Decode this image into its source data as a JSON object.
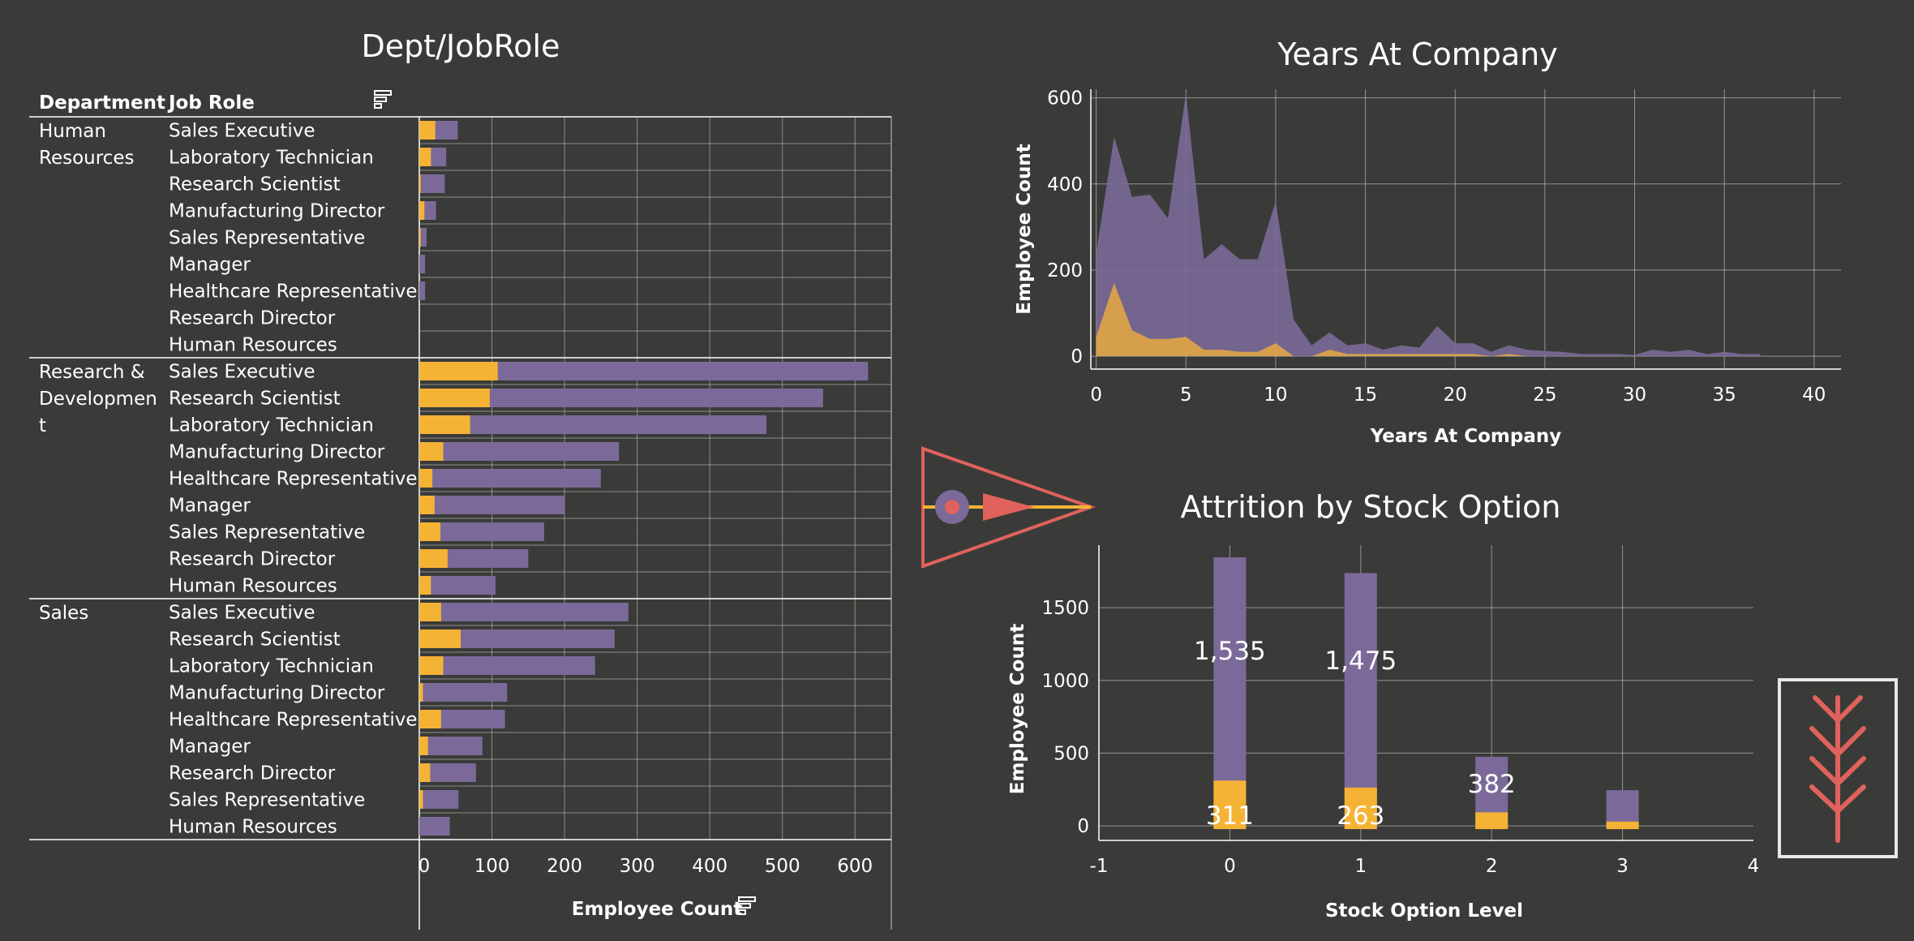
{
  "colors": {
    "background": "#3a3b38",
    "attrited": "#f5b335",
    "total": "#7b6a99",
    "grid": "#cfcfcf",
    "text": "#ffffff",
    "accent": "#e0625c"
  },
  "icons": [
    "sort-icon",
    "pennant-logo-icon",
    "tree-logo-icon"
  ],
  "dept_chart": {
    "title": "Dept/JobRole",
    "col_department": "Department",
    "col_job_role": "Job Role",
    "xlabel": "Employee Count"
  },
  "years_chart": {
    "title": "Years At Company"
  },
  "stock_chart": {
    "title": "Attrition by Stock Option"
  },
  "chart_data": [
    {
      "id": "dept-jobrole",
      "type": "bar",
      "orientation": "horizontal",
      "title": "Dept/JobRole",
      "xlabel": "Employee Count",
      "xlim": [
        0,
        650
      ],
      "xticks": [
        0,
        100,
        200,
        300,
        400,
        500,
        600
      ],
      "grid": true,
      "groups": [
        {
          "department": "Human Resources",
          "rows": [
            {
              "role": "Sales Executive",
              "total": 53,
              "attrited": 22
            },
            {
              "role": "Laboratory Technician",
              "total": 37,
              "attrited": 16
            },
            {
              "role": "Research Scientist",
              "total": 35,
              "attrited": 2
            },
            {
              "role": "Manufacturing Director",
              "total": 23,
              "attrited": 7
            },
            {
              "role": "Sales Representative",
              "total": 10,
              "attrited": 2
            },
            {
              "role": "Manager",
              "total": 8,
              "attrited": 0
            },
            {
              "role": "Healthcare Representative",
              "total": 8,
              "attrited": 0
            },
            {
              "role": "Research Director",
              "total": 0,
              "attrited": 0
            },
            {
              "role": "Human Resources",
              "total": 0,
              "attrited": 0
            }
          ]
        },
        {
          "department": "Research & Development",
          "rows": [
            {
              "role": "Sales Executive",
              "total": 618,
              "attrited": 108
            },
            {
              "role": "Research Scientist",
              "total": 556,
              "attrited": 97
            },
            {
              "role": "Laboratory Technician",
              "total": 478,
              "attrited": 70
            },
            {
              "role": "Manufacturing Director",
              "total": 275,
              "attrited": 33
            },
            {
              "role": "Healthcare Representative",
              "total": 250,
              "attrited": 18
            },
            {
              "role": "Manager",
              "total": 200,
              "attrited": 21
            },
            {
              "role": "Sales Representative",
              "total": 172,
              "attrited": 29
            },
            {
              "role": "Research Director",
              "total": 150,
              "attrited": 39
            },
            {
              "role": "Human Resources",
              "total": 105,
              "attrited": 16
            }
          ]
        },
        {
          "department": "Sales",
          "rows": [
            {
              "role": "Sales Executive",
              "total": 288,
              "attrited": 30
            },
            {
              "role": "Research Scientist",
              "total": 269,
              "attrited": 57
            },
            {
              "role": "Laboratory Technician",
              "total": 242,
              "attrited": 33
            },
            {
              "role": "Manufacturing Director",
              "total": 121,
              "attrited": 5
            },
            {
              "role": "Healthcare Representative",
              "total": 118,
              "attrited": 30
            },
            {
              "role": "Manager",
              "total": 87,
              "attrited": 12
            },
            {
              "role": "Research Director",
              "total": 78,
              "attrited": 15
            },
            {
              "role": "Sales Representative",
              "total": 54,
              "attrited": 5
            },
            {
              "role": "Human Resources",
              "total": 42,
              "attrited": 0
            }
          ]
        }
      ]
    },
    {
      "id": "years-at-company",
      "type": "area",
      "title": "Years At Company",
      "xlabel": "Years At Company",
      "ylabel": "Employee Count",
      "xlim": [
        -0.3,
        41.5
      ],
      "ylim": [
        -30,
        620
      ],
      "xticks": [
        0,
        5,
        10,
        15,
        20,
        25,
        30,
        35,
        40
      ],
      "yticks": [
        0,
        200,
        400,
        600
      ],
      "grid": true,
      "x": [
        0,
        1,
        2,
        3,
        4,
        5,
        6,
        7,
        8,
        9,
        10,
        11,
        12,
        13,
        14,
        15,
        16,
        17,
        18,
        19,
        20,
        21,
        22,
        23,
        24,
        25,
        26,
        27,
        28,
        29,
        30,
        31,
        32,
        33,
        34,
        35,
        36,
        37
      ],
      "series": [
        {
          "role": "total",
          "values": [
            240,
            510,
            370,
            375,
            320,
            610,
            225,
            260,
            225,
            225,
            360,
            85,
            25,
            55,
            25,
            30,
            15,
            25,
            20,
            70,
            30,
            30,
            10,
            25,
            15,
            12,
            10,
            5,
            5,
            5,
            3,
            15,
            10,
            15,
            5,
            10,
            5,
            5
          ]
        },
        {
          "role": "attrited",
          "values": [
            45,
            170,
            60,
            40,
            40,
            45,
            15,
            15,
            10,
            10,
            30,
            0,
            0,
            15,
            5,
            5,
            5,
            5,
            5,
            5,
            5,
            5,
            0,
            5,
            0,
            0,
            0,
            0,
            0,
            0,
            0,
            0,
            0,
            0,
            0,
            0,
            0,
            0
          ]
        }
      ]
    },
    {
      "id": "stock-option",
      "type": "bar",
      "title": "Attrition by Stock Option",
      "xlabel": "Stock Option Level",
      "ylabel": "Employee Count",
      "xlim": [
        -1,
        4
      ],
      "ylim": [
        -100,
        1930
      ],
      "xticks": [
        -1,
        0,
        1,
        2,
        3,
        4
      ],
      "yticks": [
        0,
        500,
        1000,
        1500
      ],
      "grid": true,
      "categories": [
        0,
        1,
        2,
        3
      ],
      "total_values": [
        1846,
        1738,
        475,
        245
      ],
      "attrited_values": [
        311,
        263,
        93,
        29
      ],
      "labels": [
        {
          "x": 0,
          "total_label": "1,535",
          "attrited_label": "311"
        },
        {
          "x": 1,
          "total_label": "1,475",
          "attrited_label": "263"
        },
        {
          "x": 2,
          "total_label": "382",
          "attrited_label": ""
        },
        {
          "x": 3,
          "total_label": "",
          "attrited_label": ""
        }
      ]
    }
  ]
}
